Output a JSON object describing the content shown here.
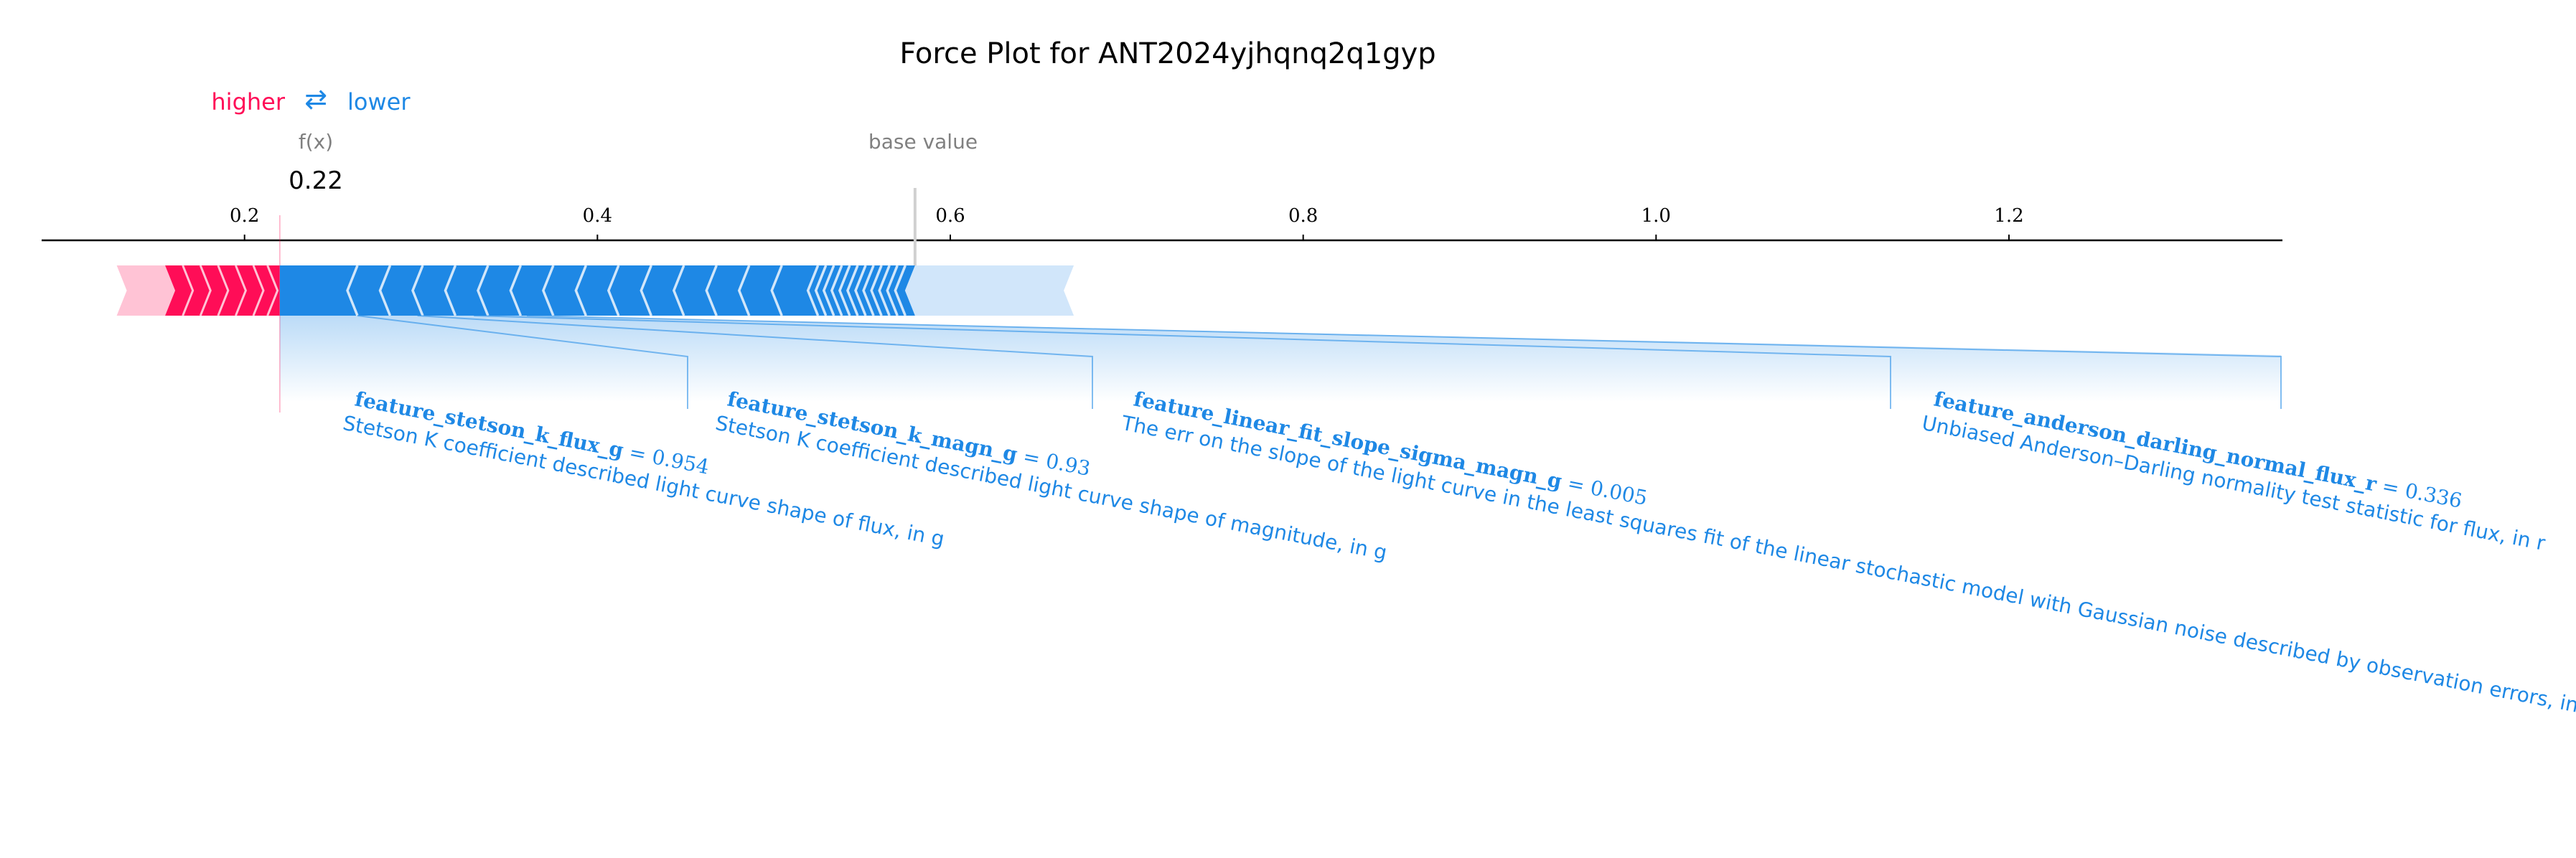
{
  "chart_data": {
    "type": "force",
    "title": "Force Plot for ANT2024yjhqnq2q1gyp",
    "legend": {
      "higher_label": "higher",
      "lower_label": "lower",
      "arrows": "⇄"
    },
    "fx_label": "f(x)",
    "fx_value": 0.22,
    "fx_text": "0.22",
    "base_value_label": "base value",
    "base_value": 0.58,
    "axis": {
      "xlim": [
        0.085,
        1.355
      ],
      "ticks": [
        0.2,
        0.4,
        0.6,
        0.8,
        1.0,
        1.2
      ],
      "tick_labels": [
        "0.2",
        "0.4",
        "0.6",
        "0.8",
        "1.0",
        "1.2"
      ]
    },
    "positive_extent": [
      0.13,
      0.22
    ],
    "negative_extent": [
      0.22,
      0.67
    ],
    "colors": {
      "positive": "#ff0d57",
      "positive_light": "#ffc3d5",
      "negative": "#1e88e5",
      "negative_light": "#d1e6fa",
      "muted": "#808080",
      "axis": "#000000"
    },
    "features": [
      {
        "name": "feature_stetson_k_flux_g",
        "value_text": " = 0.954",
        "description": "Stetson K coefficient described light curve shape of flux, in g",
        "segment": [
          0.22,
          0.264
        ]
      },
      {
        "name": "feature_stetson_k_magn_g",
        "value_text": " = 0.93",
        "description": "Stetson K coefficient described light curve shape of magnitude, in g",
        "segment": [
          0.264,
          0.298
        ]
      },
      {
        "name": "feature_linear_fit_slope_sigma_magn_g",
        "value_text": " = 0.005",
        "description": "The err on the slope of the light curve in the least squares fit of the linear stochastic model with Gaussian noise described by observation errors, in g",
        "segment": [
          0.298,
          0.33
        ]
      },
      {
        "name": "feature_anderson_darling_normal_flux_r",
        "value_text": " = 0.336",
        "description": "Unbiased Anderson–Darling normality test statistic for flux, in r",
        "segment": [
          0.33,
          0.36
        ]
      }
    ]
  }
}
